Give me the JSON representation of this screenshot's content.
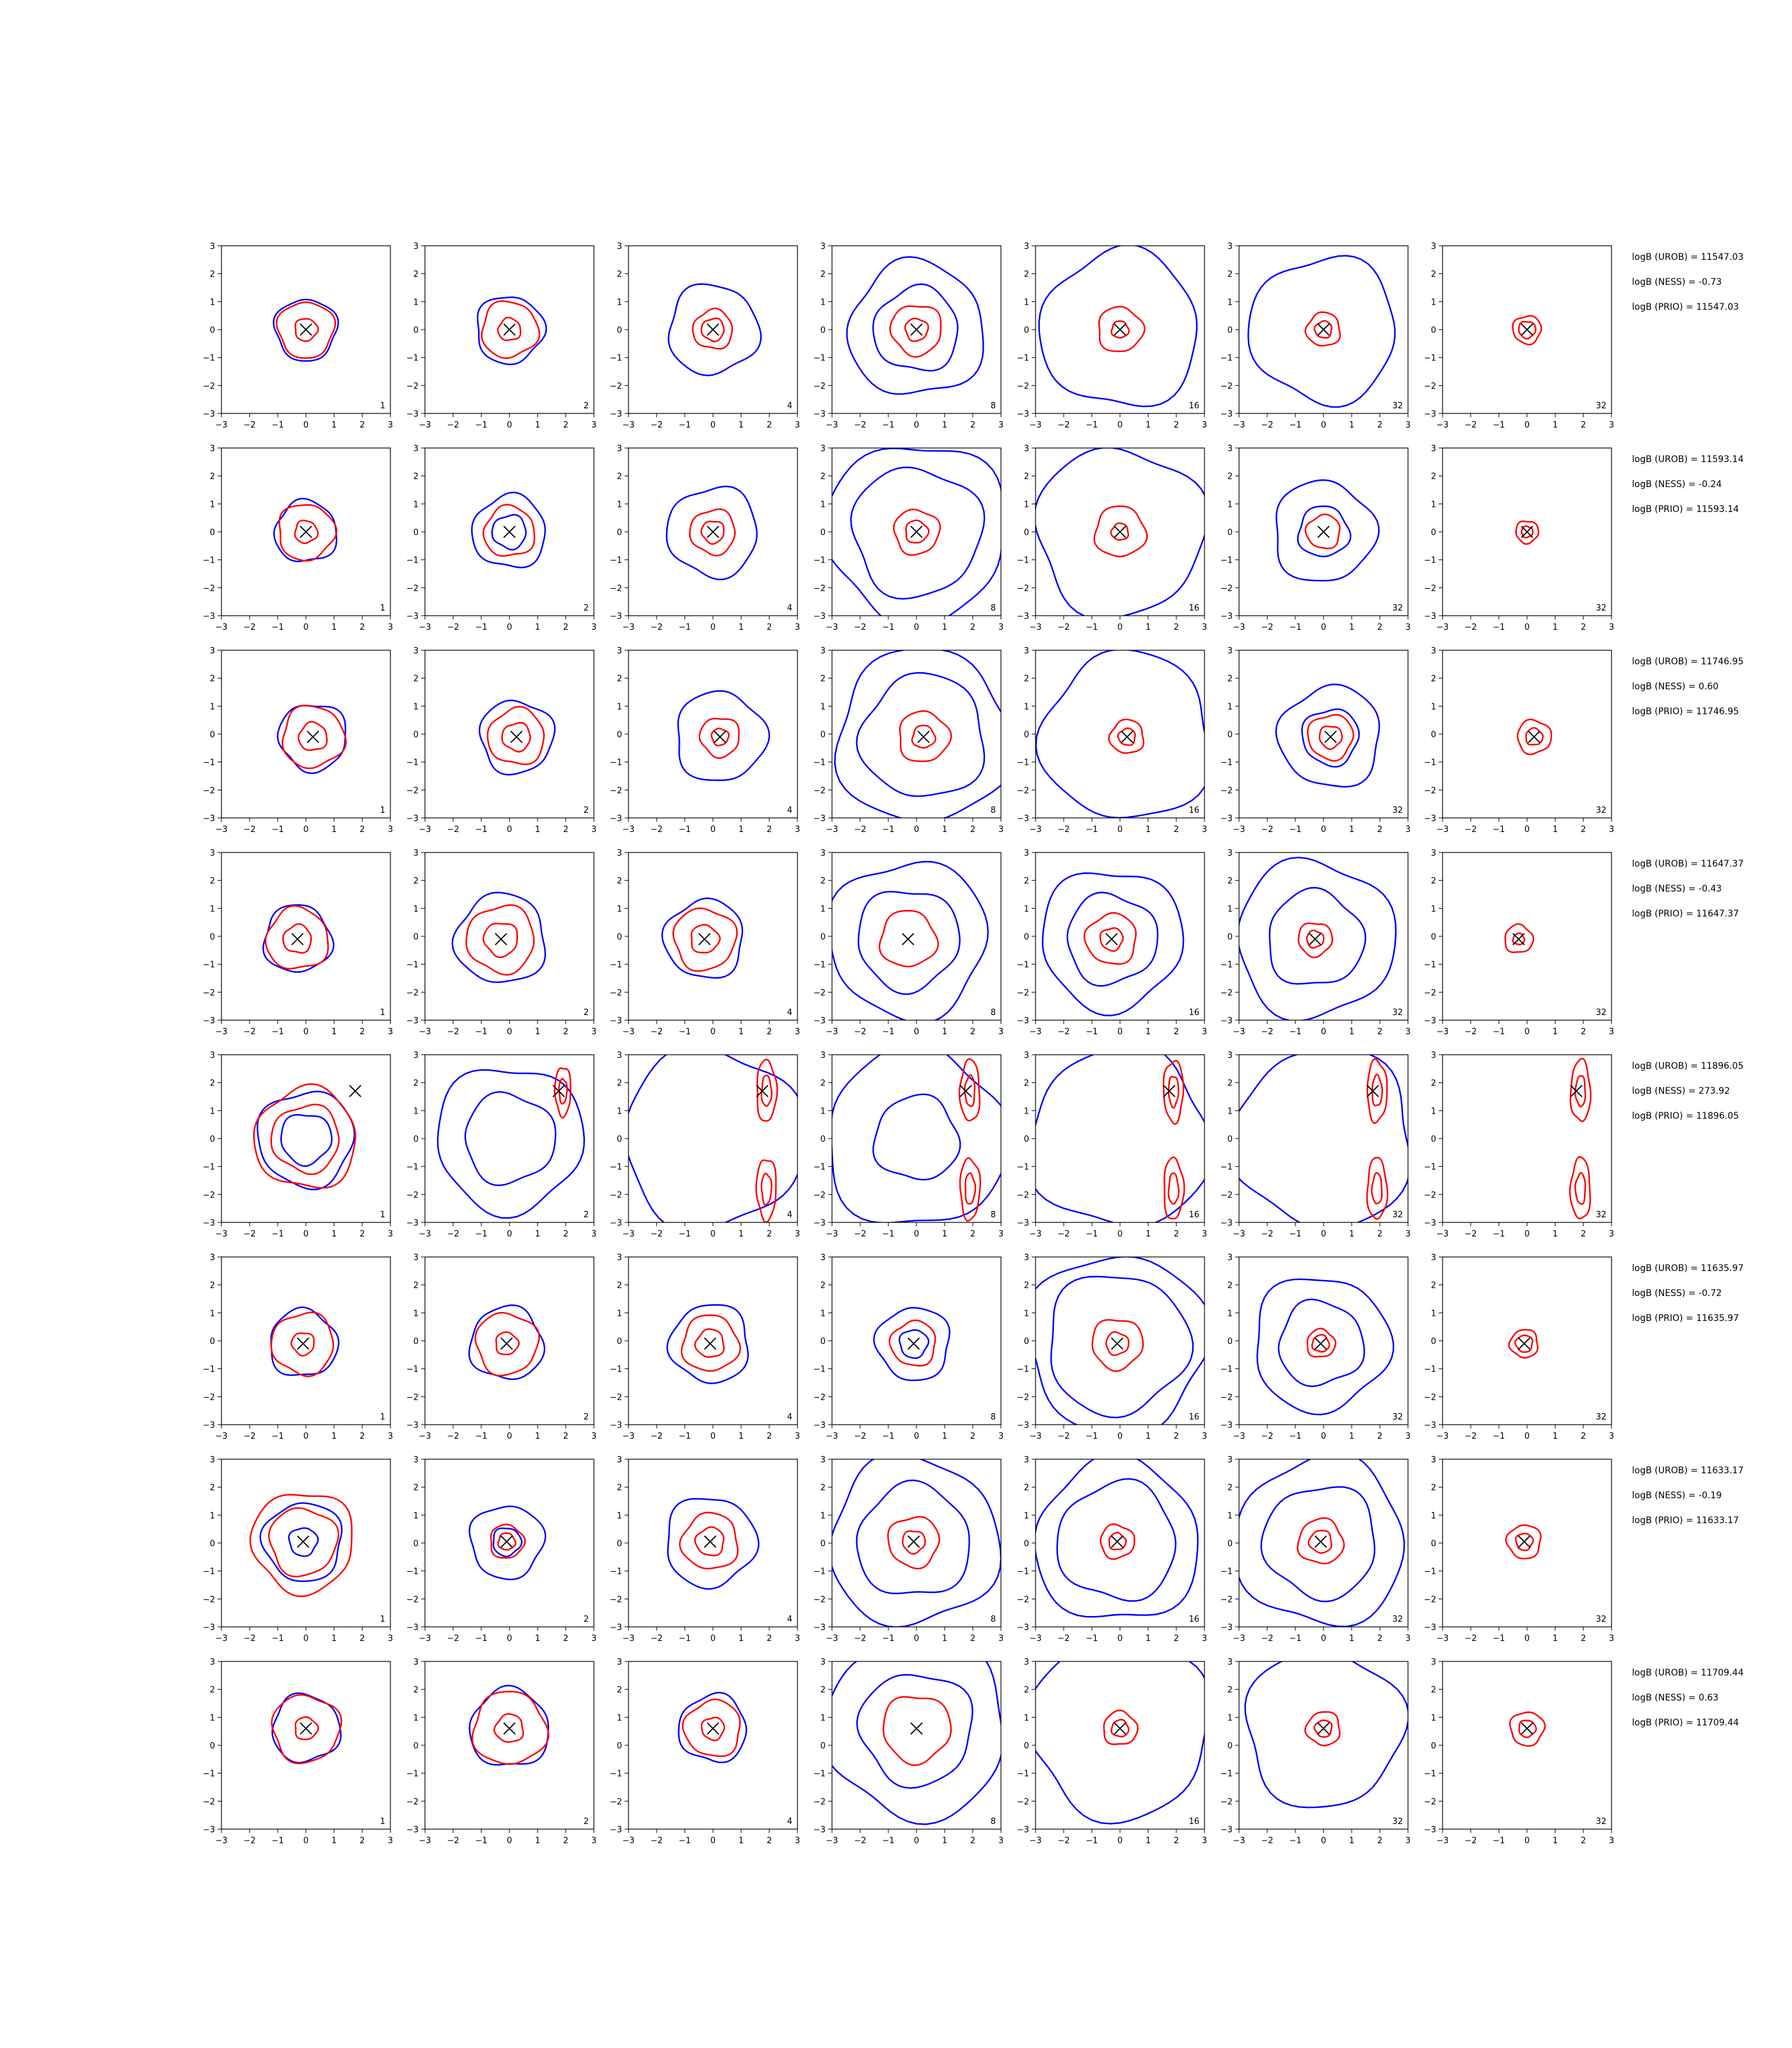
{
  "chart_data": {
    "type": "contour-grid",
    "xlim": [
      -3,
      3
    ],
    "ylim": [
      -3,
      3
    ],
    "ticks": [
      "−3",
      "−2",
      "−1",
      "0",
      "1",
      "2",
      "3"
    ],
    "colors": {
      "outer": "#0000ff",
      "inner": "#ff0000",
      "marker": "#000000"
    },
    "rows": [
      {
        "marker": [
          0.0,
          0.0
        ],
        "stats": [
          "logB (UROB) = 11547.03",
          "logB (NESS) = -0.73",
          "logB (PRIO) = 11547.03"
        ],
        "panels": [
          {
            "label": "1",
            "blue": [
              1.1
            ],
            "red": [
              1.0,
              0.4
            ]
          },
          {
            "label": "2",
            "blue": [
              1.2
            ],
            "red": [
              1.0,
              0.4
            ]
          },
          {
            "label": "4",
            "blue": [
              1.6
            ],
            "red": [
              0.7,
              0.4
            ]
          },
          {
            "label": "8",
            "blue": [
              2.4,
              1.5
            ],
            "red": [
              0.9,
              0.4
            ]
          },
          {
            "label": "16",
            "blue": [
              2.8
            ],
            "red": [
              0.8,
              0.3
            ]
          },
          {
            "label": "32",
            "blue": [
              2.6
            ],
            "red": [
              0.6,
              0.3
            ]
          },
          {
            "label": "32",
            "blue": [],
            "red": [
              0.5,
              0.3
            ]
          }
        ]
      },
      {
        "marker": [
          0.0,
          0.0
        ],
        "stats": [
          "logB (UROB) = 11593.14",
          "logB (NESS) = -0.24",
          "logB (PRIO) = 11593.14"
        ],
        "panels": [
          {
            "label": "1",
            "blue": [
              1.1
            ],
            "red": [
              1.0,
              0.4
            ]
          },
          {
            "label": "2",
            "blue": [
              1.3,
              0.6
            ],
            "red": [
              0.9
            ]
          },
          {
            "label": "4",
            "blue": [
              1.6
            ],
            "red": [
              0.8,
              0.4
            ]
          },
          {
            "label": "8",
            "blue": [
              3.2,
              2.3
            ],
            "red": [
              0.8,
              0.4
            ]
          },
          {
            "label": "16",
            "blue": [
              3.0
            ],
            "red": [
              0.9,
              0.3
            ]
          },
          {
            "label": "32",
            "blue": [
              1.8,
              0.9
            ],
            "red": [
              0.6
            ]
          },
          {
            "label": "32",
            "blue": [],
            "red": [
              0.4,
              0.2
            ]
          }
        ]
      },
      {
        "marker": [
          0.25,
          -0.1
        ],
        "stats": [
          "logB (UROB) = 11746.95",
          "logB (NESS) = 0.60",
          "logB (PRIO) = 11746.95"
        ],
        "panels": [
          {
            "label": "1",
            "blue": [
              1.2
            ],
            "red": [
              1.1,
              0.5
            ]
          },
          {
            "label": "2",
            "blue": [
              1.3
            ],
            "red": [
              1.0,
              0.5
            ]
          },
          {
            "label": "4",
            "blue": [
              1.6
            ],
            "red": [
              0.7,
              0.3
            ]
          },
          {
            "label": "8",
            "blue": [
              3.1,
              2.2
            ],
            "red": [
              0.9,
              0.4
            ]
          },
          {
            "label": "16",
            "blue": [
              3.0
            ],
            "red": [
              0.6,
              0.3
            ]
          },
          {
            "label": "32",
            "blue": [
              1.8,
              1.0
            ],
            "red": [
              0.8,
              0.4
            ]
          },
          {
            "label": "32",
            "blue": [],
            "red": [
              0.6,
              0.3
            ]
          }
        ]
      },
      {
        "marker": [
          -0.3,
          -0.1
        ],
        "stats": [
          "logB (UROB) = 11647.37",
          "logB (NESS) = -0.43",
          "logB (PRIO) = 11647.37"
        ],
        "panels": [
          {
            "label": "1",
            "blue": [
              1.2
            ],
            "red": [
              1.1,
              0.5
            ]
          },
          {
            "label": "2",
            "blue": [
              1.6
            ],
            "red": [
              1.2,
              0.6
            ]
          },
          {
            "label": "4",
            "blue": [
              1.4
            ],
            "red": [
              1.1,
              0.5
            ]
          },
          {
            "label": "8",
            "blue": [
              2.8,
              1.8
            ],
            "red": [
              1.0
            ]
          },
          {
            "label": "16",
            "blue": [
              2.5,
              1.6
            ],
            "red": [
              0.9,
              0.4
            ]
          },
          {
            "label": "32",
            "blue": [
              2.8,
              1.7
            ],
            "red": [
              0.6,
              0.3
            ]
          },
          {
            "label": "32",
            "blue": [],
            "red": [
              0.5,
              0.2
            ]
          }
        ]
      },
      {
        "marker": [
          1.75,
          1.7
        ],
        "stats": [
          "logB (UROB) = 11896.05",
          "logB (NESS) = 273.92",
          "logB (PRIO) = 11896.05"
        ],
        "panels": [
          {
            "label": "1",
            "blue": [
              1.7,
              0.9
            ],
            "red": [
              1.8,
              1.2
            ]
          },
          {
            "label": "2",
            "blue": [
              2.6,
              1.6
            ],
            "red": [
              0.8,
              0.4
            ]
          },
          {
            "label": "4",
            "blue": [
              3.2
            ],
            "red": [
              1.0,
              0.5
            ]
          },
          {
            "label": "8",
            "blue": [
              3.2,
              1.5
            ],
            "red": [
              1.0,
              0.5
            ]
          },
          {
            "label": "16",
            "blue": [
              3.2
            ],
            "red": [
              1.0,
              0.5
            ]
          },
          {
            "label": "32",
            "blue": [
              3.2
            ],
            "red": [
              1.0,
              0.5
            ]
          },
          {
            "label": "32",
            "blue": [],
            "red": [
              1.0,
              0.5
            ]
          }
        ]
      },
      {
        "marker": [
          -0.1,
          -0.1
        ],
        "stats": [
          "logB (UROB) = 11635.97",
          "logB (NESS) = -0.72",
          "logB (PRIO) = 11635.97"
        ],
        "panels": [
          {
            "label": "1",
            "blue": [
              1.2
            ],
            "red": [
              1.1,
              0.4
            ]
          },
          {
            "label": "2",
            "blue": [
              1.3
            ],
            "red": [
              1.1,
              0.4
            ]
          },
          {
            "label": "4",
            "blue": [
              1.4
            ],
            "red": [
              1.0,
              0.5
            ]
          },
          {
            "label": "8",
            "blue": [
              1.3,
              0.5
            ],
            "red": [
              0.8
            ]
          },
          {
            "label": "16",
            "blue": [
              3.2,
              2.5
            ],
            "red": [
              0.9,
              0.4
            ]
          },
          {
            "label": "32",
            "blue": [
              2.4,
              1.5
            ],
            "red": [
              0.5,
              0.3
            ]
          },
          {
            "label": "32",
            "blue": [],
            "red": [
              0.5,
              0.3
            ]
          }
        ]
      },
      {
        "marker": [
          -0.1,
          0.05
        ],
        "stats": [
          "logB (UROB) = 11633.17",
          "logB (NESS) = -0.19",
          "logB (PRIO) = 11633.17"
        ],
        "panels": [
          {
            "label": "1",
            "blue": [
              1.4,
              0.5
            ],
            "red": [
              1.8,
              1.2
            ]
          },
          {
            "label": "2",
            "blue": [
              1.3,
              0.5
            ],
            "red": [
              0.6,
              0.3
            ]
          },
          {
            "label": "4",
            "blue": [
              1.6
            ],
            "red": [
              1.0,
              0.5
            ]
          },
          {
            "label": "8",
            "blue": [
              3.0,
              2.0
            ],
            "red": [
              0.9,
              0.4
            ]
          },
          {
            "label": "16",
            "blue": [
              2.9,
              2.1
            ],
            "red": [
              0.6,
              0.3
            ]
          },
          {
            "label": "32",
            "blue": [
              3.0,
              2.0
            ],
            "red": [
              0.8,
              0.4
            ]
          },
          {
            "label": "32",
            "blue": [],
            "red": [
              0.6,
              0.3
            ]
          }
        ]
      },
      {
        "marker": [
          0.0,
          0.6
        ],
        "stats": [
          "logB (UROB) = 11709.44",
          "logB (NESS) = 0.63",
          "logB (PRIO) = 11709.44"
        ],
        "panels": [
          {
            "label": "1",
            "blue": [
              1.2
            ],
            "red": [
              1.2,
              0.4
            ]
          },
          {
            "label": "2",
            "blue": [
              1.4
            ],
            "red": [
              1.3,
              0.5
            ]
          },
          {
            "label": "4",
            "blue": [
              1.2
            ],
            "red": [
              1.0,
              0.4
            ]
          },
          {
            "label": "8",
            "blue": [
              3.2,
              2.0
            ],
            "red": [
              1.2
            ]
          },
          {
            "label": "16",
            "blue": [
              3.2
            ],
            "red": [
              0.6,
              0.3
            ]
          },
          {
            "label": "32",
            "blue": [
              2.8
            ],
            "red": [
              0.6,
              0.3
            ]
          },
          {
            "label": "32",
            "blue": [],
            "red": [
              0.6,
              0.3
            ]
          }
        ]
      }
    ]
  }
}
